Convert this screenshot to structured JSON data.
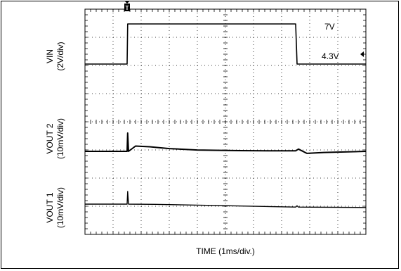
{
  "chart_data": {
    "type": "line",
    "xlabel": "TIME (1ms/div.)",
    "x_unit": "ms",
    "xlim": [
      -1.5,
      8.5
    ],
    "grid": true,
    "trigger_marker": "T",
    "channels": [
      {
        "name_line1": "VIN",
        "name_line2": "(2V/div)",
        "color": "#000000",
        "level_labels": [
          "7V",
          "4.3V"
        ],
        "x": [
          -1.5,
          0.0,
          0.02,
          6.0,
          6.05,
          8.5
        ],
        "y": [
          4.3,
          4.3,
          7.0,
          7.0,
          4.3,
          4.3
        ]
      },
      {
        "name_line1": "VOUT 2",
        "name_line2": "(10mV/div)",
        "color": "#000000",
        "x": [
          -1.5,
          0.0,
          0.02,
          0.05,
          0.3,
          0.8,
          1.5,
          2.5,
          4.0,
          5.5,
          6.0,
          6.1,
          6.4,
          7.0,
          8.5
        ],
        "y": [
          0,
          0,
          8,
          0,
          2.3,
          2.0,
          1.2,
          0.6,
          0.3,
          0.2,
          0.2,
          1.0,
          -0.9,
          -0.5,
          0
        ],
        "unit": "mV"
      },
      {
        "name_line1": "VOUT 1",
        "name_line2": "(10mV/div)",
        "color": "#000000",
        "x": [
          -1.5,
          0.0,
          0.02,
          0.05,
          1.0,
          3.0,
          6.0,
          6.05,
          6.1,
          8.5
        ],
        "y": [
          0,
          0,
          6,
          0,
          -0.1,
          -0.6,
          -1.4,
          -0.8,
          -1.4,
          -1.6
        ],
        "unit": "mV"
      }
    ]
  }
}
